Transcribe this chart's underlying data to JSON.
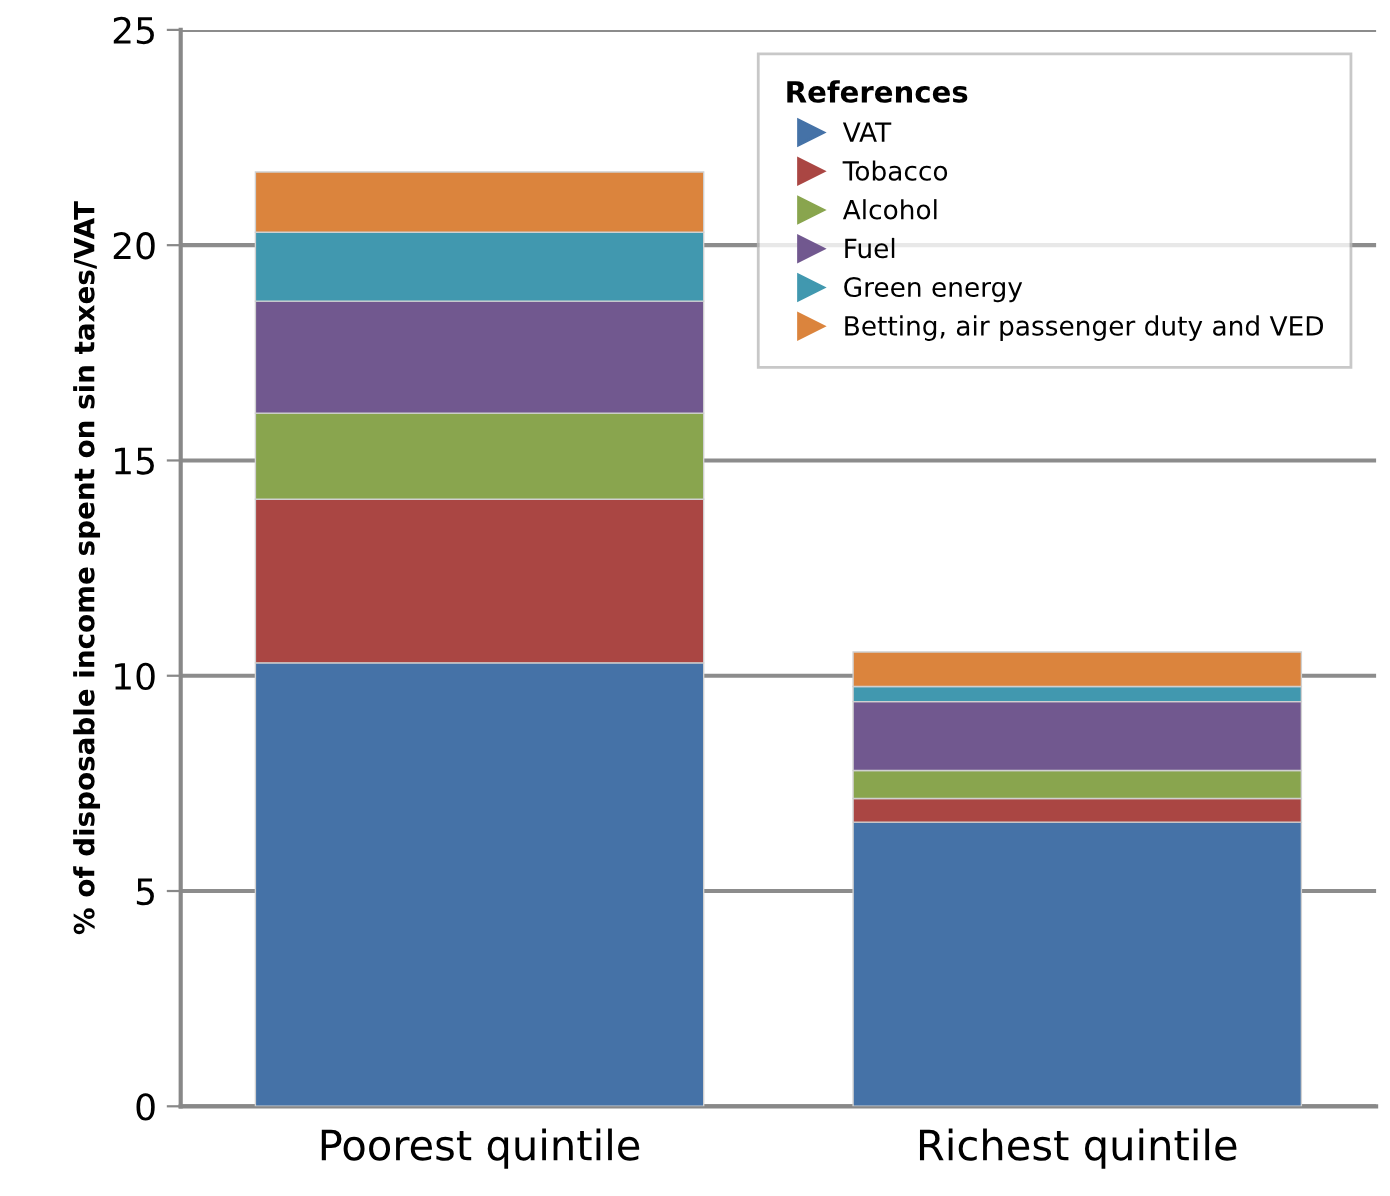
{
  "chart_data": {
    "type": "bar",
    "stacked": true,
    "ylabel": "% of disposable income spent on sin taxes/VAT",
    "legend_title": "References",
    "legend": "top right",
    "grid": "y",
    "categories": [
      "Poorest quintile",
      "Richest quintile"
    ],
    "ylim": [
      0,
      25
    ],
    "yticks": [
      0,
      5,
      10,
      15,
      20,
      25
    ],
    "series": [
      {
        "name": "VAT",
        "color": "#4572a7",
        "values": [
          10.3,
          6.6
        ]
      },
      {
        "name": "Tobacco",
        "color": "#aa4643",
        "values": [
          3.8,
          0.55
        ]
      },
      {
        "name": "Alcohol",
        "color": "#89a54e",
        "values": [
          2.0,
          0.65
        ]
      },
      {
        "name": "Fuel",
        "color": "#71588f",
        "values": [
          2.6,
          1.6
        ]
      },
      {
        "name": "Green energy",
        "color": "#4198af",
        "values": [
          1.6,
          0.35
        ]
      },
      {
        "name": "Betting, air passenger duty and VED",
        "color": "#db843d",
        "values": [
          1.4,
          0.8
        ]
      }
    ]
  }
}
